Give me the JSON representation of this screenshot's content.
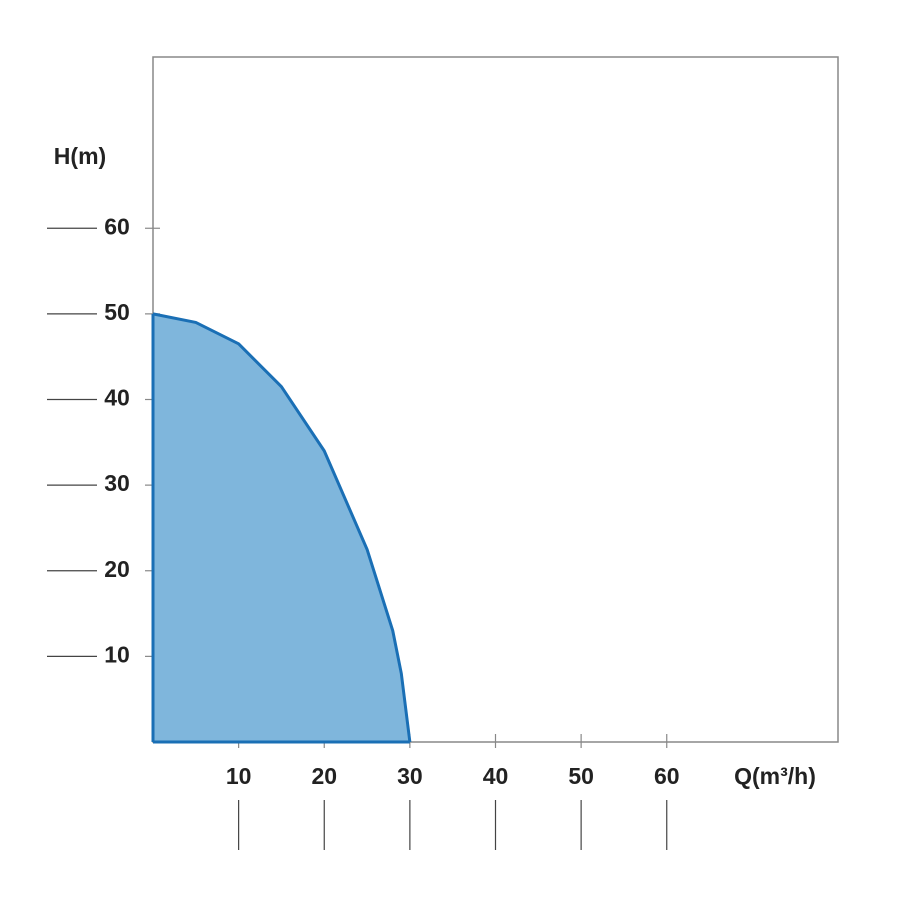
{
  "chart_data": {
    "type": "area",
    "y_label": "H(m)",
    "x_label": "Q(m³/h)",
    "x": [
      0,
      5,
      10,
      15,
      20,
      25,
      28,
      29,
      30
    ],
    "values": [
      50,
      49,
      46.5,
      41.5,
      34,
      22.5,
      13,
      8,
      0
    ],
    "color": "#7fb6dc",
    "line_color": "#1a6fb5",
    "xlim": [
      0,
      80
    ],
    "ylim": [
      0,
      80
    ],
    "xticks": [
      10,
      20,
      30,
      40,
      50,
      60
    ],
    "yticks": [
      10,
      20,
      30,
      40,
      50,
      60
    ],
    "grid": false
  }
}
